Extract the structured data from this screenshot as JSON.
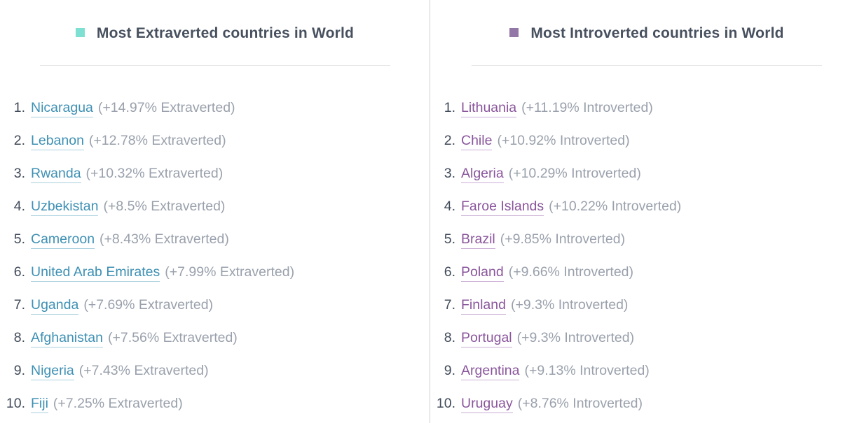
{
  "columns": [
    {
      "id": "extraverted",
      "title": "Most Extraverted countries in World",
      "accent_color": "#7de0d3",
      "link_color": "#3e90b4",
      "link_underline_color": "#a9d0de",
      "items": [
        {
          "rank": 1,
          "country": "Nicaragua",
          "note": "(+14.97% Extraverted)"
        },
        {
          "rank": 2,
          "country": "Lebanon",
          "note": "(+12.78% Extraverted)"
        },
        {
          "rank": 3,
          "country": "Rwanda",
          "note": "(+10.32% Extraverted)"
        },
        {
          "rank": 4,
          "country": "Uzbekistan",
          "note": "(+8.5% Extraverted)"
        },
        {
          "rank": 5,
          "country": "Cameroon",
          "note": "(+8.43% Extraverted)"
        },
        {
          "rank": 6,
          "country": "United Arab Emirates",
          "note": "(+7.99% Extraverted)"
        },
        {
          "rank": 7,
          "country": "Uganda",
          "note": "(+7.69% Extraverted)"
        },
        {
          "rank": 8,
          "country": "Afghanistan",
          "note": "(+7.56% Extraverted)"
        },
        {
          "rank": 9,
          "country": "Nigeria",
          "note": "(+7.43% Extraverted)"
        },
        {
          "rank": 10,
          "country": "Fiji",
          "note": "(+7.25% Extraverted)"
        }
      ]
    },
    {
      "id": "introverted",
      "title": "Most Introverted countries in World",
      "accent_color": "#9377a6",
      "link_color": "#8a569c",
      "link_underline_color": "#cbaed6",
      "items": [
        {
          "rank": 1,
          "country": "Lithuania",
          "note": "(+11.19% Introverted)"
        },
        {
          "rank": 2,
          "country": "Chile",
          "note": "(+10.92% Introverted)"
        },
        {
          "rank": 3,
          "country": "Algeria",
          "note": "(+10.29% Introverted)"
        },
        {
          "rank": 4,
          "country": "Faroe Islands",
          "note": "(+10.22% Introverted)"
        },
        {
          "rank": 5,
          "country": "Brazil",
          "note": "(+9.85% Introverted)"
        },
        {
          "rank": 6,
          "country": "Poland",
          "note": "(+9.66% Introverted)"
        },
        {
          "rank": 7,
          "country": "Finland",
          "note": "(+9.3% Introverted)"
        },
        {
          "rank": 8,
          "country": "Portugal",
          "note": "(+9.3% Introverted)"
        },
        {
          "rank": 9,
          "country": "Argentina",
          "note": "(+9.13% Introverted)"
        },
        {
          "rank": 10,
          "country": "Uruguay",
          "note": "(+8.76% Introverted)"
        }
      ]
    }
  ]
}
